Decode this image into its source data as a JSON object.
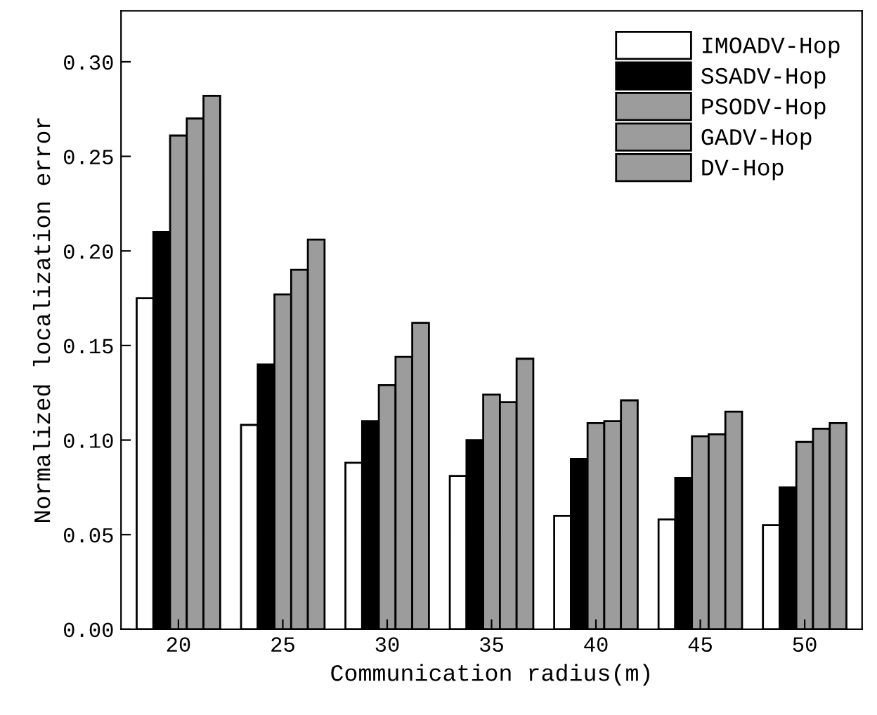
{
  "chart_data": {
    "type": "bar",
    "xlabel": "Communication radius(m)",
    "ylabel": "Normalized localization error",
    "categories": [
      "20",
      "25",
      "30",
      "35",
      "40",
      "45",
      "50"
    ],
    "series": [
      {
        "name": "IMOADV-Hop",
        "color": "#ffffff",
        "values": [
          0.175,
          0.108,
          0.088,
          0.081,
          0.06,
          0.058,
          0.055
        ]
      },
      {
        "name": "SSADV-Hop",
        "color": "#000000",
        "values": [
          0.21,
          0.14,
          0.11,
          0.1,
          0.09,
          0.08,
          0.075
        ]
      },
      {
        "name": "PSODV-Hop",
        "color": "#9c9c9c",
        "values": [
          0.261,
          0.177,
          0.129,
          0.124,
          0.109,
          0.102,
          0.099
        ]
      },
      {
        "name": "GADV-Hop",
        "color": "#9c9c9c",
        "values": [
          0.27,
          0.19,
          0.144,
          0.12,
          0.11,
          0.103,
          0.106
        ]
      },
      {
        "name": "DV-Hop",
        "color": "#9c9c9c",
        "values": [
          0.282,
          0.206,
          0.162,
          0.143,
          0.121,
          0.115,
          0.109
        ]
      }
    ],
    "ylim": [
      0,
      0.327
    ],
    "yticks": [
      {
        "value": 0,
        "label": "0.00"
      },
      0.05,
      {
        "value": 0.1,
        "label": "0.10"
      },
      0.15,
      {
        "value": 0.2,
        "label": "0.20"
      },
      0.25,
      {
        "value": 0.3,
        "label": "0.30"
      }
    ],
    "grid": false,
    "legend": "top right"
  }
}
